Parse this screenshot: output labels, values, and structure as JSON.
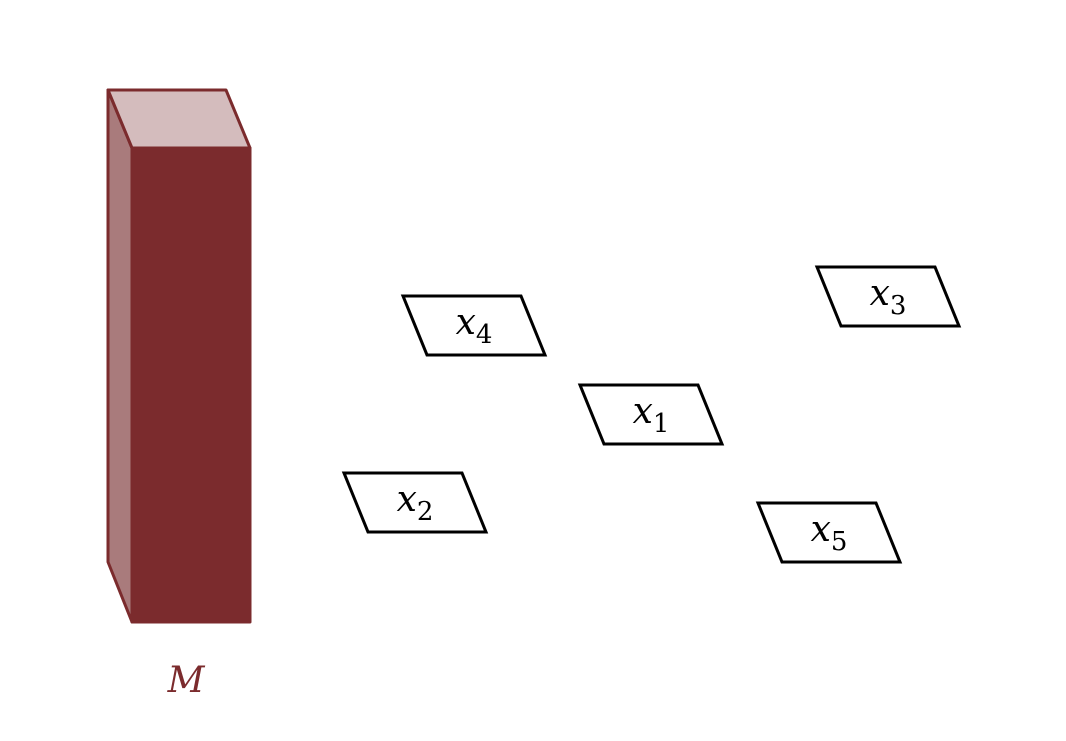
{
  "block": {
    "label": "M"
  },
  "nodes": [
    {
      "var": "x",
      "sub": "4"
    },
    {
      "var": "x",
      "sub": "1"
    },
    {
      "var": "x",
      "sub": "2"
    },
    {
      "var": "x",
      "sub": "3"
    },
    {
      "var": "x",
      "sub": "5"
    }
  ]
}
